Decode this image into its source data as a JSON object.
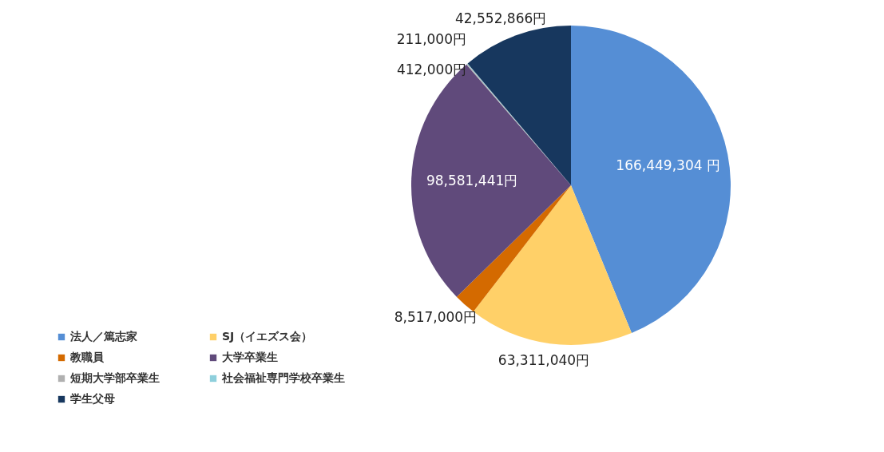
{
  "chart_data": {
    "type": "pie",
    "categories": [
      "法人／篤志家",
      "SJ（イエズス会）",
      "教職員",
      "大学卒業生",
      "短期大学部卒業生",
      "社会福祉専門学校卒業生",
      "学生父母"
    ],
    "values": [
      166449304,
      63311040,
      8517000,
      98581441,
      412000,
      211000,
      42552866
    ],
    "colors": [
      "#558ed5",
      "#ffd068",
      "#d46a00",
      "#604a7b",
      "#b0b0b0",
      "#8ecfdc",
      "#17375e"
    ],
    "value_labels": [
      "166,449,304 円",
      "63,311,040円",
      "8,517,000円",
      "98,581,441円",
      "412,000円",
      "211,000円",
      "42,552,866円"
    ],
    "legend": "bottom left"
  }
}
